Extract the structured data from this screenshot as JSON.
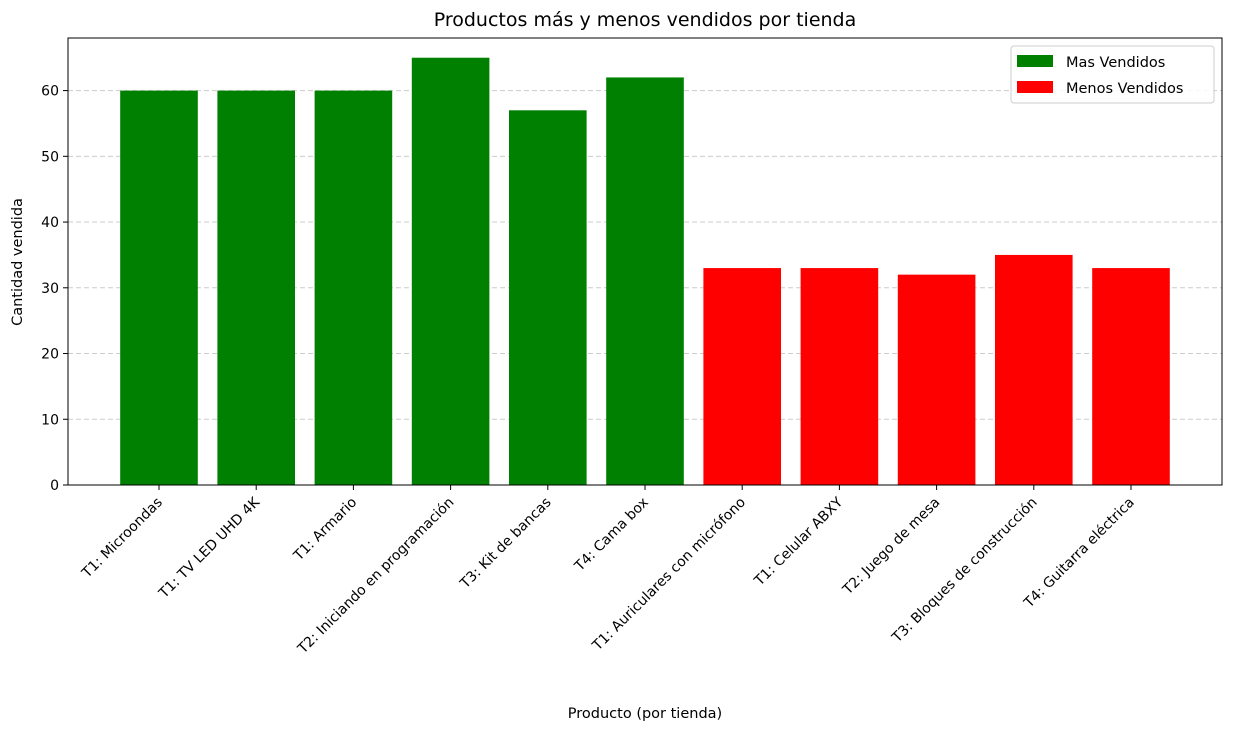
{
  "chart_data": {
    "type": "bar",
    "title": "Productos más y menos vendidos por tienda",
    "xlabel": "Producto (por tienda)",
    "ylabel": "Cantidad vendida",
    "ylim": [
      0,
      68
    ],
    "yticks": [
      0,
      10,
      20,
      30,
      40,
      50,
      60
    ],
    "grid": "y-dashed",
    "legend_position": "top-right",
    "categories": [
      "T1: Microondas",
      "T1: TV LED UHD 4K",
      "T1: Armario",
      "T2: Iniciando en programación",
      "T3: Kit de bancas",
      "T4: Cama box",
      "T1: Auriculares con micrófono",
      "T1: Celular ABXY",
      "T2: Juego de mesa",
      "T3: Bloques de construcción",
      "T4: Guitarra eléctrica"
    ],
    "series": [
      {
        "name": "Mas Vendidos",
        "color": "#008000",
        "values": [
          60,
          60,
          60,
          65,
          57,
          62,
          null,
          null,
          null,
          null,
          null
        ]
      },
      {
        "name": "Menos Vendidos",
        "color": "#ff0000",
        "values": [
          null,
          null,
          null,
          null,
          null,
          null,
          33,
          33,
          32,
          35,
          33
        ]
      }
    ]
  }
}
